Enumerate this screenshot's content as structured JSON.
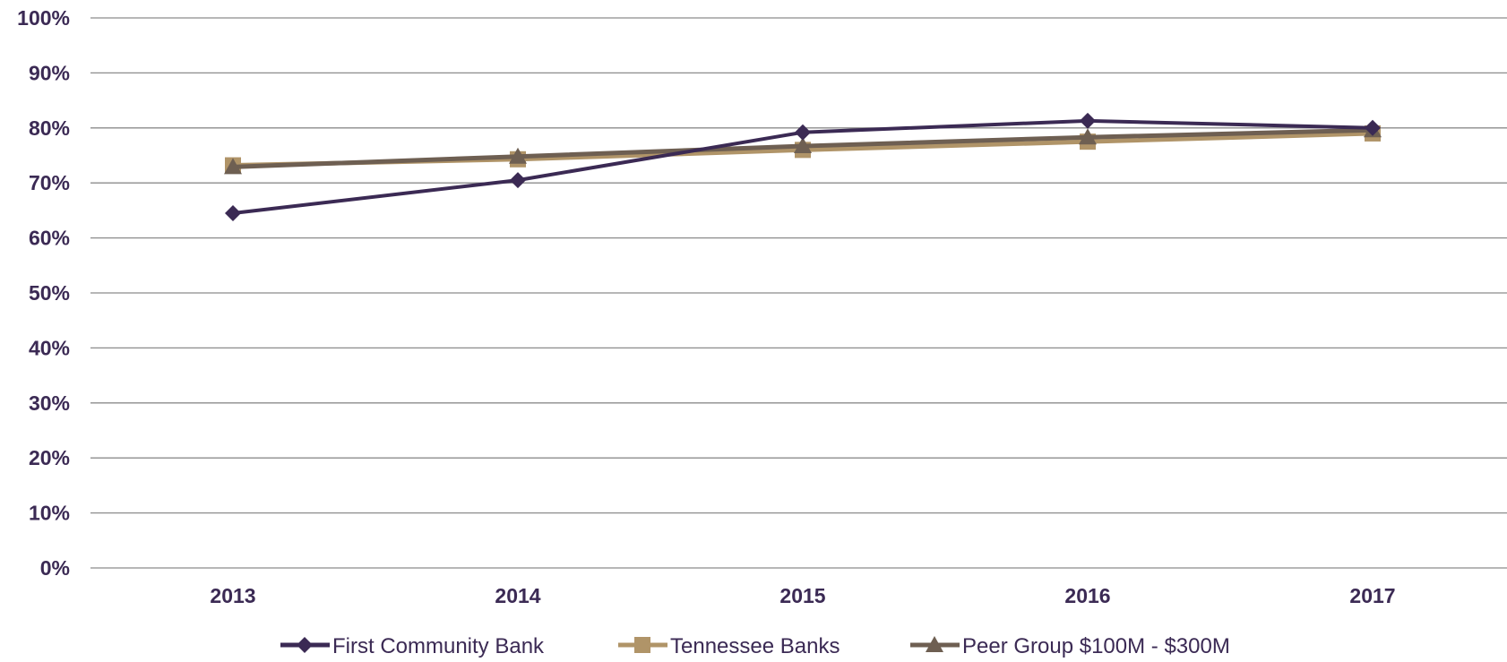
{
  "chart_data": {
    "type": "line",
    "title": "",
    "xlabel": "",
    "ylabel": "",
    "categories": [
      "2013",
      "2014",
      "2015",
      "2016",
      "2017"
    ],
    "ylim": [
      0,
      100
    ],
    "y_ticks": [
      "0%",
      "10%",
      "20%",
      "30%",
      "40%",
      "50%",
      "60%",
      "70%",
      "80%",
      "90%",
      "100%"
    ],
    "y_tick_values": [
      0,
      10,
      20,
      30,
      40,
      50,
      60,
      70,
      80,
      90,
      100
    ],
    "grid": true,
    "legend_position": "bottom",
    "series": [
      {
        "name": "First Community Bank",
        "values": [
          64.5,
          70.5,
          79.2,
          81.3,
          80.0
        ],
        "color": "#3b2a54",
        "marker": "diamond"
      },
      {
        "name": "Tennessee Banks",
        "values": [
          73.2,
          74.3,
          76.0,
          77.5,
          79.0
        ],
        "color": "#b09468",
        "marker": "square"
      },
      {
        "name": "Peer Group $100M - $300M",
        "values": [
          72.9,
          74.8,
          76.7,
          78.3,
          79.6
        ],
        "color": "#6e5f52",
        "marker": "triangle"
      }
    ]
  },
  "colors": {
    "axis_text": "#3b2a54",
    "gridline": "#8c8c8c"
  }
}
